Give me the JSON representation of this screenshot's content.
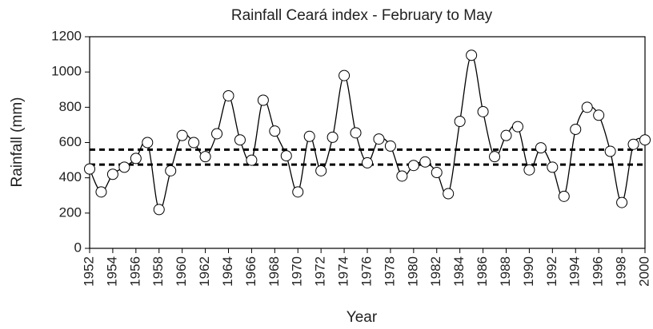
{
  "chart_data": {
    "type": "line",
    "title": "Rainfall Ceará index - February to May",
    "x_label": "Year",
    "y_label": "Rainfall (mm)",
    "x": [
      1952,
      1953,
      1954,
      1955,
      1956,
      1957,
      1958,
      1959,
      1960,
      1961,
      1962,
      1963,
      1964,
      1965,
      1966,
      1967,
      1968,
      1969,
      1970,
      1971,
      1972,
      1973,
      1974,
      1975,
      1976,
      1977,
      1978,
      1979,
      1980,
      1981,
      1982,
      1983,
      1984,
      1985,
      1986,
      1987,
      1988,
      1989,
      1990,
      1991,
      1992,
      1993,
      1994,
      1995,
      1996,
      1997,
      1998,
      1999,
      2000
    ],
    "series": [
      {
        "name": "Rainfall",
        "color": "#000000",
        "values": [
          450,
          320,
          420,
          460,
          510,
          600,
          220,
          440,
          640,
          600,
          520,
          650,
          865,
          615,
          500,
          840,
          665,
          525,
          320,
          635,
          440,
          630,
          980,
          655,
          485,
          620,
          580,
          410,
          470,
          490,
          430,
          310,
          720,
          1095,
          775,
          520,
          640,
          690,
          445,
          570,
          460,
          295,
          675,
          800,
          755,
          550,
          260,
          590,
          615
        ]
      }
    ],
    "hlines": [
      560,
      475
    ],
    "xlim": [
      1952,
      2000
    ],
    "xticks": [
      1952,
      1954,
      1956,
      1958,
      1960,
      1962,
      1964,
      1966,
      1968,
      1970,
      1972,
      1974,
      1976,
      1978,
      1980,
      1982,
      1984,
      1986,
      1988,
      1990,
      1992,
      1994,
      1996,
      1998,
      2000
    ],
    "ylim": [
      0,
      1200
    ],
    "yticks": [
      0,
      200,
      400,
      600,
      800,
      1000,
      1200
    ]
  }
}
